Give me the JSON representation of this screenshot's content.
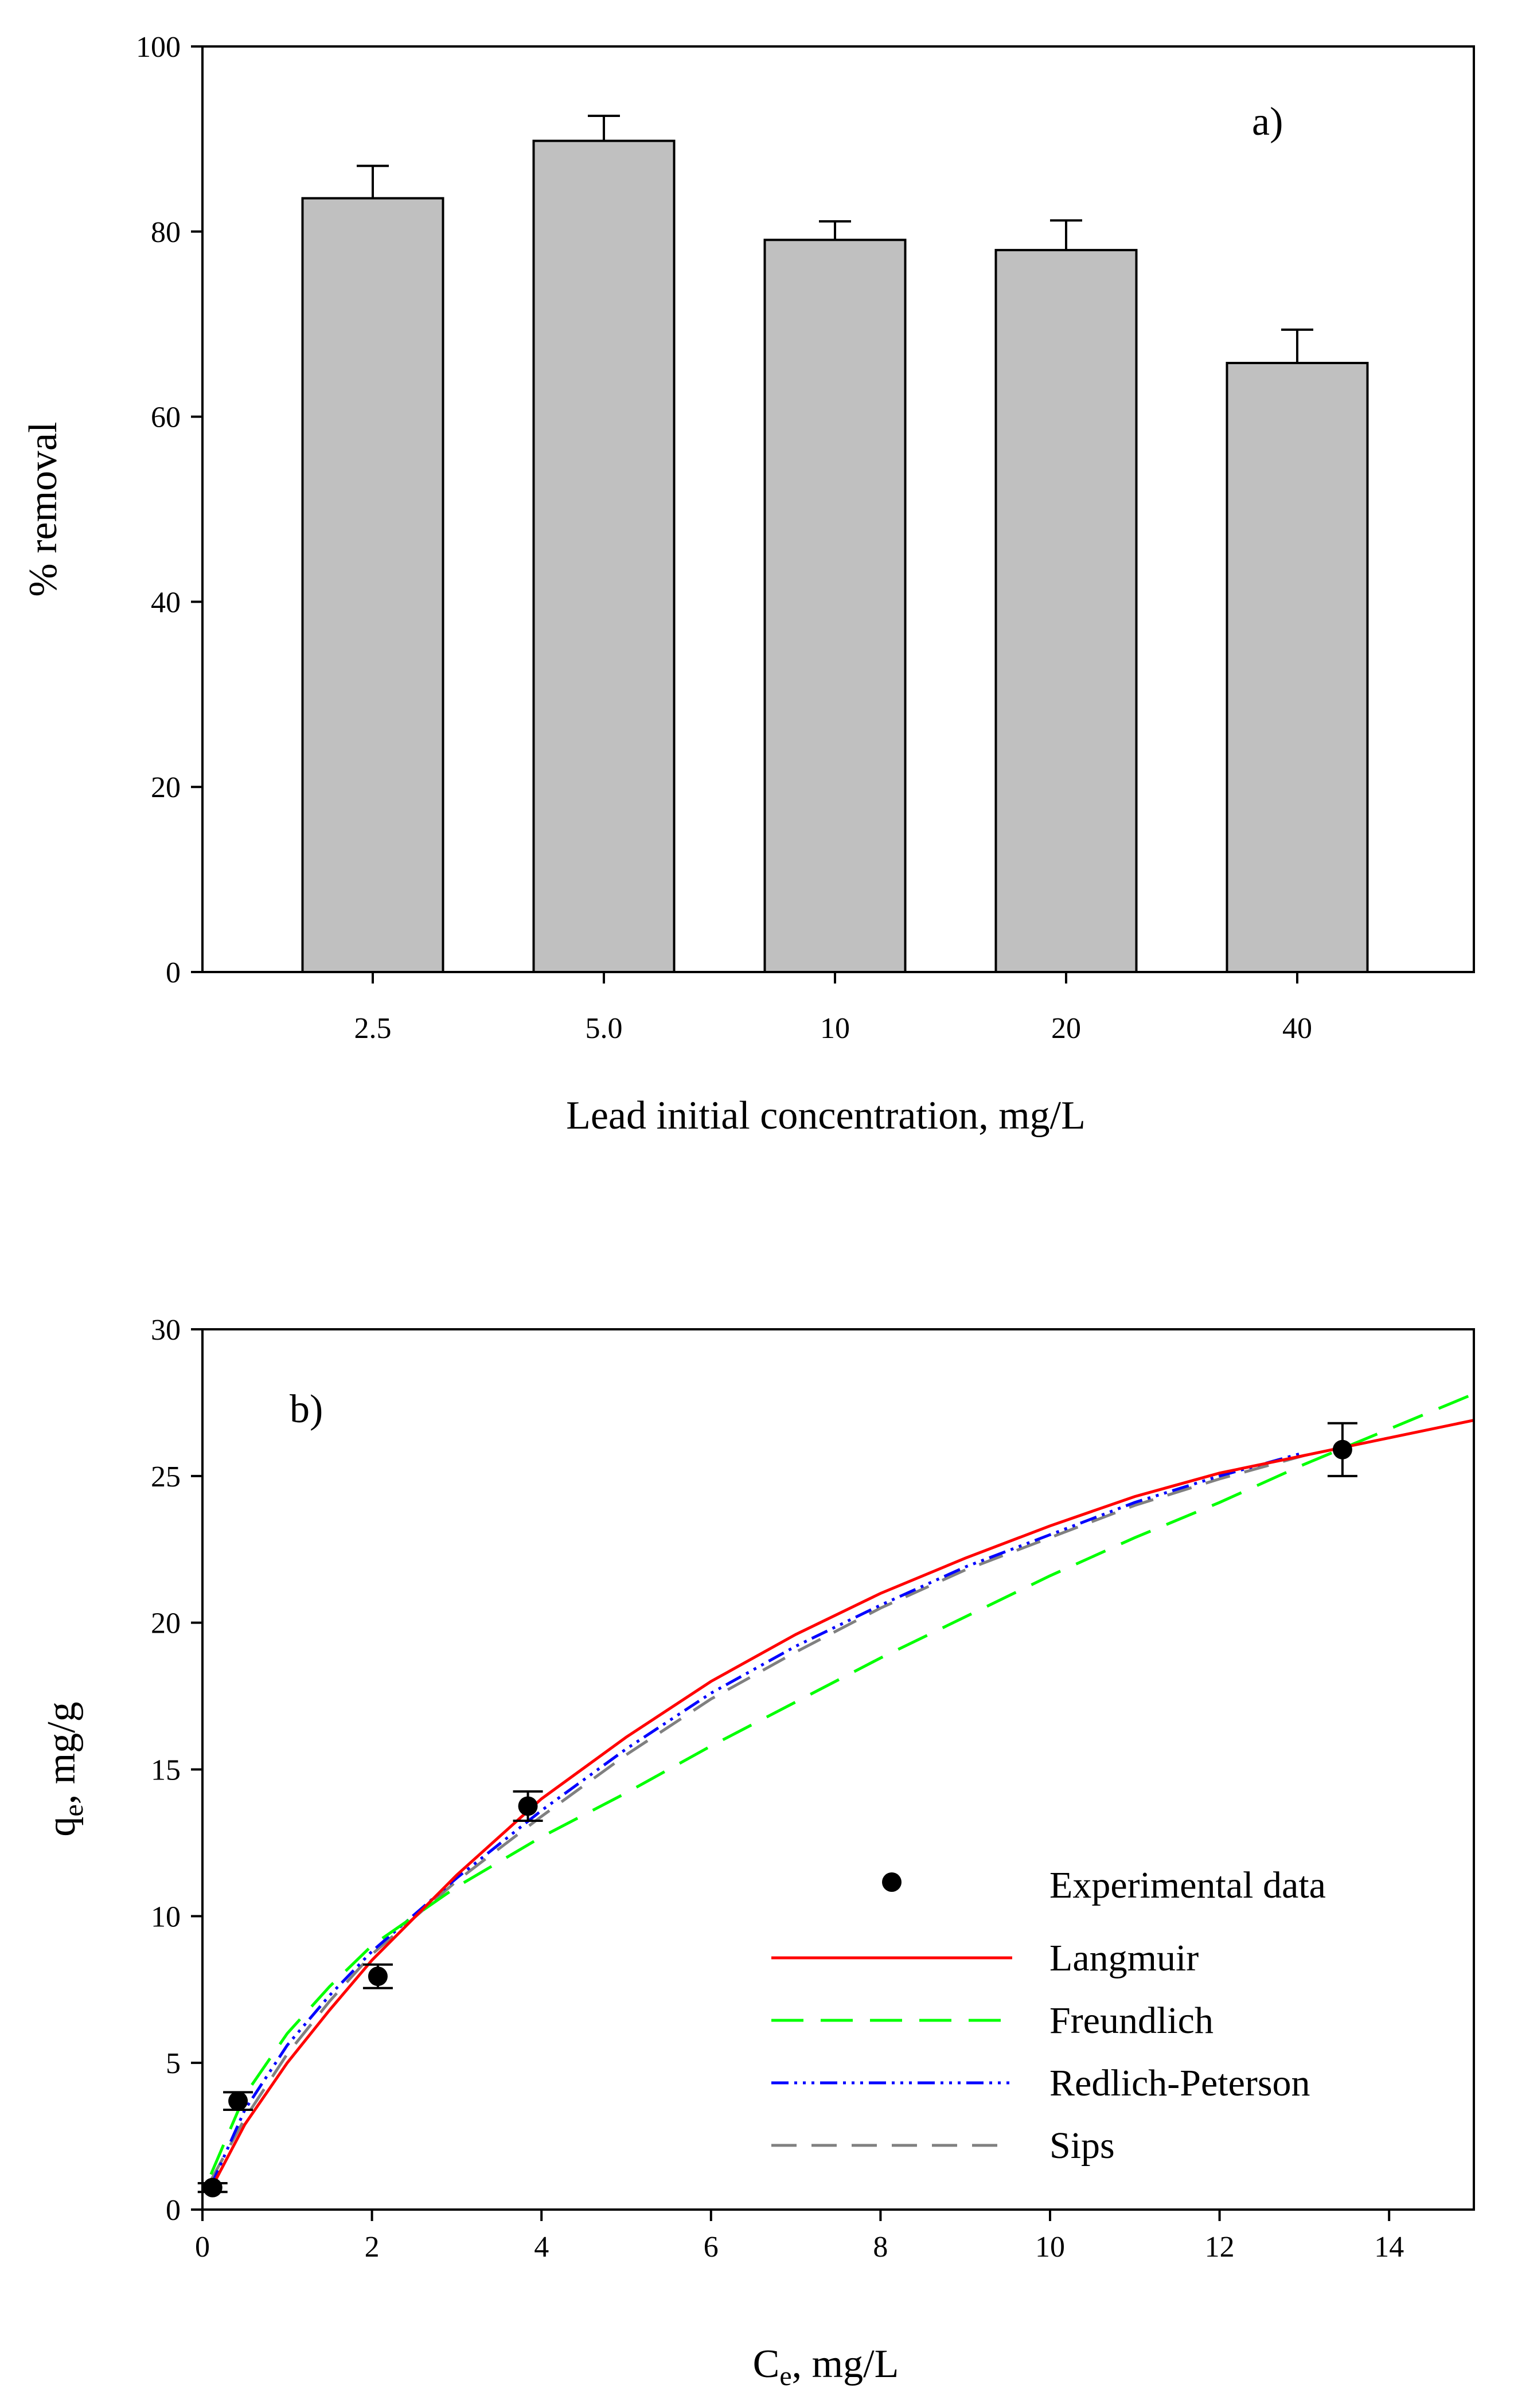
{
  "chart_data": [
    {
      "type": "bar",
      "panel_label": "a)",
      "title": "",
      "xlabel": "Lead initial concentration, mg/L",
      "ylabel": "% removal",
      "categories": [
        "2.5",
        "5.0",
        "10",
        "20",
        "40"
      ],
      "values": [
        83.6,
        89.8,
        79.1,
        78.0,
        65.8
      ],
      "errors": [
        3.5,
        2.7,
        2.0,
        3.2,
        3.6
      ],
      "ylim": [
        0,
        100
      ],
      "yticks": [
        "0",
        "20",
        "40",
        "60",
        "80",
        "100"
      ],
      "grid": false
    },
    {
      "type": "scatter",
      "panel_label": "b)",
      "title": "",
      "xlabel": "Ce, mg/L",
      "xlabel_main": "C",
      "xlabel_sub": "e",
      "xlabel_rest": ", mg/L",
      "ylabel": "qe, mg/g",
      "ylabel_main": "q",
      "ylabel_sub": "e",
      "ylabel_rest": ", mg/g",
      "xlim": [
        0,
        15
      ],
      "ylim": [
        0,
        30
      ],
      "xticks": [
        "0",
        "2",
        "4",
        "6",
        "8",
        "10",
        "12",
        "14"
      ],
      "yticks": [
        "0",
        "5",
        "10",
        "15",
        "20",
        "25",
        "30"
      ],
      "grid": false,
      "legend_position": "bottom-right",
      "series": [
        {
          "name": "Experimental data",
          "kind": "points",
          "color": "#000000",
          "x": [
            0.12,
            0.42,
            2.07,
            3.84,
            13.45
          ],
          "y": [
            0.75,
            3.7,
            7.95,
            13.75,
            25.9
          ],
          "yerr": [
            0.15,
            0.3,
            0.4,
            0.5,
            0.9
          ]
        },
        {
          "name": "Langmuir",
          "kind": "line",
          "color": "#ff0000",
          "dash": "",
          "x": [
            0.1,
            0.5,
            1,
            1.5,
            2,
            3,
            4,
            5,
            6,
            7,
            8,
            9,
            10,
            11,
            12,
            13,
            14,
            15
          ],
          "y": [
            0.7,
            2.9,
            5.0,
            6.8,
            8.5,
            11.4,
            14.0,
            16.1,
            18.0,
            19.6,
            21.0,
            22.2,
            23.3,
            24.3,
            25.1,
            25.7,
            26.3,
            26.9
          ]
        },
        {
          "name": "Freundlich",
          "kind": "line",
          "color": "#00ff00",
          "dash": "56 30",
          "x": [
            0.1,
            0.5,
            1,
            1.5,
            2,
            3,
            4,
            5,
            6,
            7,
            8,
            9,
            10,
            11,
            12,
            13,
            14,
            15
          ],
          "y": [
            1.2,
            3.9,
            6.0,
            7.6,
            9.0,
            11.0,
            12.7,
            14.2,
            15.8,
            17.3,
            18.8,
            20.2,
            21.6,
            22.9,
            24.1,
            25.4,
            26.6,
            27.8
          ]
        },
        {
          "name": "Redlich-Peterson",
          "kind": "line",
          "color": "#0000ff",
          "dash": "30 10 5 10 5 10 5 10",
          "x": [
            0.1,
            0.5,
            1,
            1.5,
            2,
            3,
            4,
            5,
            6,
            7,
            8,
            9,
            10,
            11,
            12,
            13
          ],
          "y": [
            0.8,
            3.4,
            5.6,
            7.3,
            8.8,
            11.3,
            13.6,
            15.7,
            17.6,
            19.2,
            20.6,
            21.9,
            23.0,
            24.1,
            25.0,
            25.8
          ]
        },
        {
          "name": "Sips",
          "kind": "line",
          "color": "#808080",
          "dash": "44 26",
          "x": [
            0.1,
            0.5,
            1,
            1.5,
            2,
            3,
            4,
            5,
            6,
            7,
            8,
            9,
            10,
            11,
            12,
            13
          ],
          "y": [
            1.0,
            3.1,
            5.3,
            7.1,
            8.7,
            11.2,
            13.4,
            15.5,
            17.4,
            19.0,
            20.5,
            21.8,
            22.9,
            24.0,
            24.9,
            25.7
          ]
        }
      ]
    }
  ]
}
